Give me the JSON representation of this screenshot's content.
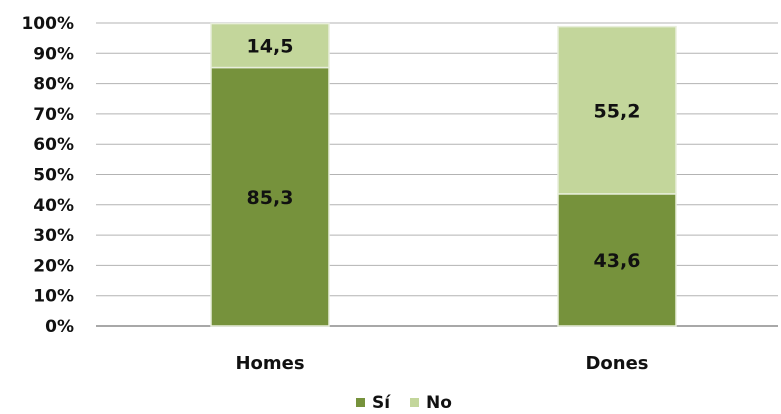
{
  "chart_data": {
    "type": "bar",
    "stacked": true,
    "categories": [
      "Homes",
      "Dones"
    ],
    "series": [
      {
        "name": "Sí",
        "values": [
          85.3,
          43.6
        ],
        "labels": [
          "85,3",
          "43,6"
        ],
        "color": "#76923c"
      },
      {
        "name": "No",
        "values": [
          14.5,
          55.2
        ],
        "labels": [
          "14,5",
          "55,2"
        ],
        "color": "#c3d69b"
      }
    ],
    "ylim": [
      0,
      100
    ],
    "yticks": [
      "0%",
      "10%",
      "20%",
      "30%",
      "40%",
      "50%",
      "60%",
      "70%",
      "80%",
      "90%",
      "100%"
    ],
    "grid": true,
    "legend_position": "bottom"
  }
}
